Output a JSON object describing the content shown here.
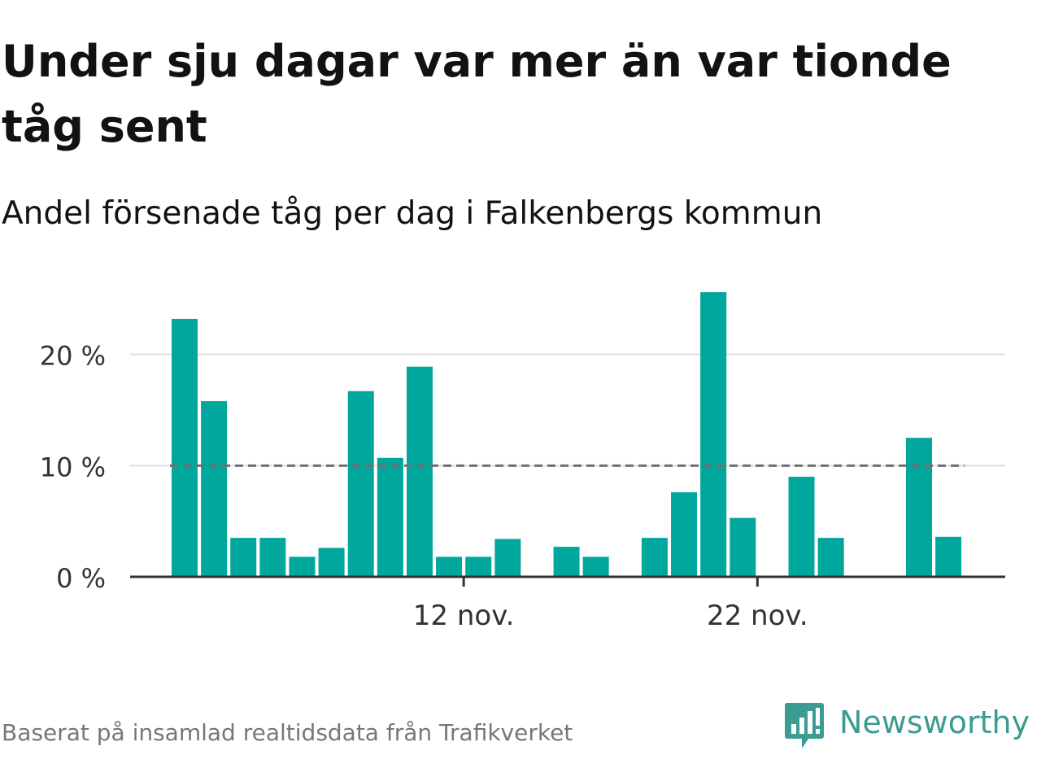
{
  "title": "Under sju dagar var mer än var tionde tåg sent",
  "subtitle": "Andel försenade tåg per dag i Falkenbergs kommun",
  "source": "Baserat på insamlad realtidsdata från Trafikverket",
  "brand": {
    "name": "Newsworthy",
    "logo_icon": "newsworthy-logo-icon"
  },
  "colors": {
    "bar": "#00a79d",
    "threshold": "#707070",
    "grid": "#dddddd",
    "axis": "#333333",
    "text": "#121212",
    "brand": "#3c9b92"
  },
  "chart_data": {
    "type": "bar",
    "x_unit": "day",
    "x": [
      "2023-11-02",
      "2023-11-03",
      "2023-11-04",
      "2023-11-05",
      "2023-11-06",
      "2023-11-07",
      "2023-11-08",
      "2023-11-09",
      "2023-11-10",
      "2023-11-11",
      "2023-11-12",
      "2023-11-13",
      "2023-11-14",
      "2023-11-15",
      "2023-11-16",
      "2023-11-17",
      "2023-11-18",
      "2023-11-19",
      "2023-11-20",
      "2023-11-21",
      "2023-11-22",
      "2023-11-23",
      "2023-11-24",
      "2023-11-25",
      "2023-11-26",
      "2023-11-27",
      "2023-11-28"
    ],
    "values": [
      23.2,
      15.8,
      3.5,
      3.5,
      1.8,
      2.6,
      16.7,
      10.7,
      18.9,
      1.8,
      1.8,
      3.4,
      null,
      2.7,
      1.8,
      null,
      3.5,
      7.6,
      25.6,
      5.3,
      null,
      9.0,
      3.5,
      null,
      null,
      12.5,
      3.6
    ],
    "ylim": [
      0,
      27
    ],
    "yticks": [
      0,
      10,
      20
    ],
    "ytick_labels": [
      "0 %",
      "10 %",
      "20 %"
    ],
    "xticks": [
      "2023-11-12",
      "2023-11-22"
    ],
    "xtick_labels": [
      "12 nov.",
      "22 nov."
    ],
    "threshold": 10,
    "threshold_style": "dashed",
    "grid": true,
    "legend": false
  }
}
